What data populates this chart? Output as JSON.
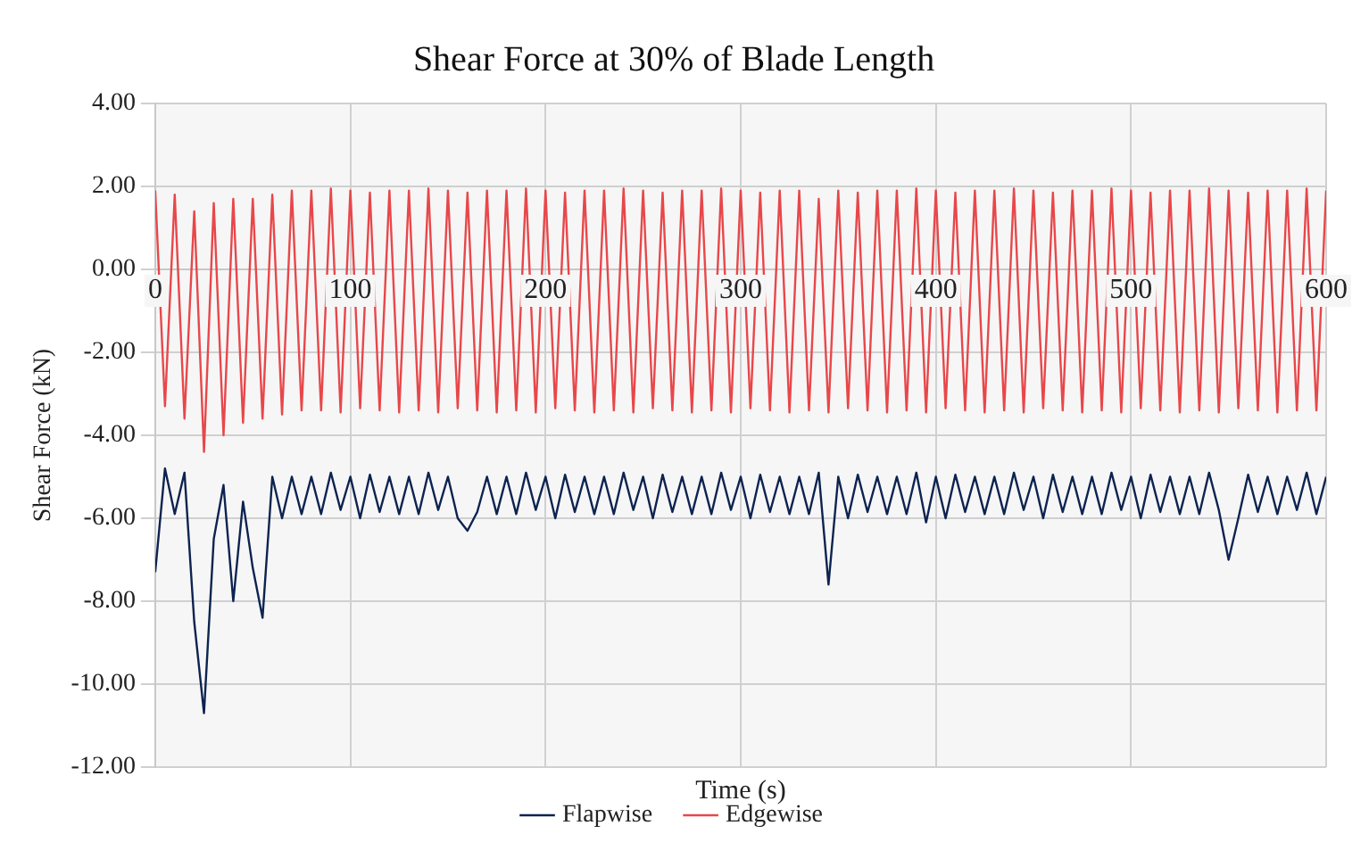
{
  "chart_data": {
    "type": "line",
    "title": "Shear Force at 30% of Blade Length",
    "xlabel": "Time (s)",
    "ylabel": "Shear Force (kN)",
    "x": [
      0,
      5,
      10,
      15,
      20,
      25,
      30,
      35,
      40,
      45,
      50,
      55,
      60,
      65,
      70,
      75,
      80,
      85,
      90,
      95,
      100,
      105,
      110,
      115,
      120,
      125,
      130,
      135,
      140,
      145,
      150,
      155,
      160,
      165,
      170,
      175,
      180,
      185,
      190,
      195,
      200,
      205,
      210,
      215,
      220,
      225,
      230,
      235,
      240,
      245,
      250,
      255,
      260,
      265,
      270,
      275,
      280,
      285,
      290,
      295,
      300,
      305,
      310,
      315,
      320,
      325,
      330,
      335,
      340,
      345,
      350,
      355,
      360,
      365,
      370,
      375,
      380,
      385,
      390,
      395,
      400,
      405,
      410,
      415,
      420,
      425,
      430,
      435,
      440,
      445,
      450,
      455,
      460,
      465,
      470,
      475,
      480,
      485,
      490,
      495,
      500,
      505,
      510,
      515,
      520,
      525,
      530,
      535,
      540,
      545,
      550,
      555,
      560,
      565,
      570,
      575,
      580,
      585,
      590,
      595,
      600
    ],
    "series": [
      {
        "name": "Flapwise",
        "color": "#0d2350",
        "values": [
          -7.3,
          -4.8,
          -5.9,
          -4.9,
          -8.5,
          -10.7,
          -6.5,
          -5.2,
          -8.0,
          -5.6,
          -7.2,
          -8.4,
          -5.0,
          -6.0,
          -5.0,
          -5.9,
          -5.0,
          -5.9,
          -4.9,
          -5.8,
          -5.0,
          -6.0,
          -4.95,
          -5.85,
          -5.0,
          -5.9,
          -5.0,
          -5.9,
          -4.9,
          -5.8,
          -5.0,
          -6.0,
          -6.3,
          -5.85,
          -5.0,
          -5.9,
          -5.0,
          -5.9,
          -4.9,
          -5.8,
          -5.0,
          -6.0,
          -4.95,
          -5.85,
          -5.0,
          -5.9,
          -5.0,
          -5.9,
          -4.9,
          -5.8,
          -5.0,
          -6.0,
          -4.95,
          -5.85,
          -5.0,
          -5.9,
          -5.0,
          -5.9,
          -4.9,
          -5.8,
          -5.0,
          -6.0,
          -4.95,
          -5.85,
          -5.0,
          -5.9,
          -5.0,
          -5.9,
          -4.9,
          -7.6,
          -5.0,
          -6.0,
          -4.95,
          -5.85,
          -5.0,
          -5.9,
          -5.0,
          -5.9,
          -4.9,
          -6.1,
          -5.0,
          -6.0,
          -4.95,
          -5.85,
          -5.0,
          -5.9,
          -5.0,
          -5.9,
          -4.9,
          -5.8,
          -5.0,
          -6.0,
          -4.95,
          -5.85,
          -5.0,
          -5.9,
          -5.0,
          -5.9,
          -4.9,
          -5.8,
          -5.0,
          -6.0,
          -4.95,
          -5.85,
          -5.0,
          -5.9,
          -5.0,
          -5.9,
          -4.9,
          -5.8,
          -7.0,
          -6.0,
          -4.95,
          -5.85,
          -5.0,
          -5.9,
          -5.0,
          -5.8,
          -4.9,
          -5.9,
          -5.0
        ]
      },
      {
        "name": "Edgewise",
        "color": "#e8474a",
        "values": [
          1.9,
          -3.3,
          1.8,
          -3.6,
          1.4,
          -4.4,
          1.6,
          -4.0,
          1.7,
          -3.7,
          1.7,
          -3.6,
          1.8,
          -3.5,
          1.9,
          -3.4,
          1.9,
          -3.4,
          1.95,
          -3.45,
          1.9,
          -3.35,
          1.85,
          -3.4,
          1.9,
          -3.45,
          1.9,
          -3.4,
          1.95,
          -3.45,
          1.9,
          -3.35,
          1.85,
          -3.4,
          1.9,
          -3.45,
          1.9,
          -3.4,
          1.95,
          -3.45,
          1.9,
          -3.35,
          1.85,
          -3.4,
          1.9,
          -3.45,
          1.9,
          -3.4,
          1.95,
          -3.45,
          1.9,
          -3.35,
          1.85,
          -3.4,
          1.9,
          -3.45,
          1.9,
          -3.4,
          1.95,
          -3.45,
          1.9,
          -3.35,
          1.85,
          -3.4,
          1.9,
          -3.45,
          1.9,
          -3.4,
          1.7,
          -3.45,
          1.9,
          -3.35,
          1.85,
          -3.4,
          1.9,
          -3.45,
          1.9,
          -3.4,
          1.95,
          -3.45,
          1.9,
          -3.35,
          1.85,
          -3.4,
          1.9,
          -3.45,
          1.9,
          -3.4,
          1.95,
          -3.45,
          1.9,
          -3.35,
          1.85,
          -3.4,
          1.9,
          -3.45,
          1.9,
          -3.4,
          1.95,
          -3.45,
          1.9,
          -3.35,
          1.85,
          -3.4,
          1.9,
          -3.45,
          1.9,
          -3.4,
          1.95,
          -3.45,
          1.9,
          -3.35,
          1.85,
          -3.4,
          1.9,
          -3.45,
          1.9,
          -3.4,
          1.95,
          -3.4,
          1.9
        ]
      }
    ],
    "xlim": [
      0,
      600
    ],
    "xticks": [
      0,
      100,
      200,
      300,
      400,
      500,
      600
    ],
    "ylim": [
      -12,
      4
    ],
    "yticks": [
      {
        "value": -12,
        "label": "-12.00"
      },
      {
        "value": -10,
        "label": "-10.00"
      },
      {
        "value": -8,
        "label": "-8.00"
      },
      {
        "value": -6,
        "label": "-6.00"
      },
      {
        "value": -4,
        "label": "-4.00"
      },
      {
        "value": -2,
        "label": "-2.00"
      },
      {
        "value": 0,
        "label": "0.00"
      },
      {
        "value": 2,
        "label": "2.00"
      },
      {
        "value": 4,
        "label": "4.00"
      }
    ],
    "grid": true,
    "legend": "bottom",
    "marker": "none",
    "line_style": "solid"
  }
}
